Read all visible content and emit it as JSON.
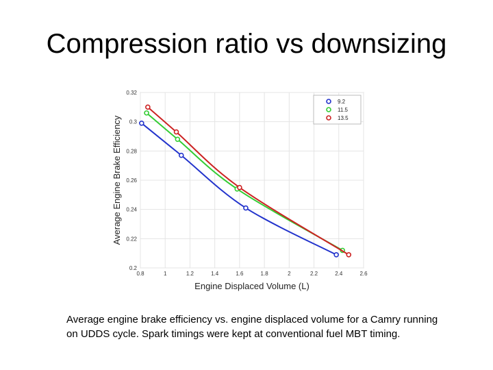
{
  "slide": {
    "title": "Compression ratio vs downsizing",
    "caption": "Average engine brake efficiency vs. engine displaced volume for a Camry running on UDDS cycle. Spark timings were kept at conventional fuel MBT timing."
  },
  "chart_data": {
    "type": "line",
    "title": "",
    "xlabel": "Engine Displaced Volume (L)",
    "ylabel": "Average Engine Brake Efficiency",
    "xlim": [
      0.8,
      2.6
    ],
    "ylim": [
      0.2,
      0.32
    ],
    "xticks": [
      "0.8",
      "1",
      "1.2",
      "1.4",
      "1.6",
      "1.8",
      "2",
      "2.2",
      "2.4",
      "2.6"
    ],
    "yticks": [
      "0.2",
      "0.22",
      "0.24",
      "0.26",
      "0.28",
      "0.3",
      "0.32"
    ],
    "grid": true,
    "legend_position": "top-right",
    "series": [
      {
        "name": "9.2",
        "color": "#2233cc",
        "points": [
          [
            0.81,
            0.299
          ],
          [
            1.13,
            0.277
          ],
          [
            1.65,
            0.241
          ],
          [
            2.38,
            0.209
          ]
        ]
      },
      {
        "name": "11.5",
        "color": "#33cc33",
        "points": [
          [
            0.85,
            0.306
          ],
          [
            1.1,
            0.288
          ],
          [
            1.58,
            0.254
          ],
          [
            2.43,
            0.212
          ]
        ]
      },
      {
        "name": "13.5",
        "color": "#cc2222",
        "points": [
          [
            0.86,
            0.31
          ],
          [
            1.09,
            0.293
          ],
          [
            1.6,
            0.255
          ],
          [
            2.48,
            0.209
          ]
        ]
      }
    ]
  }
}
